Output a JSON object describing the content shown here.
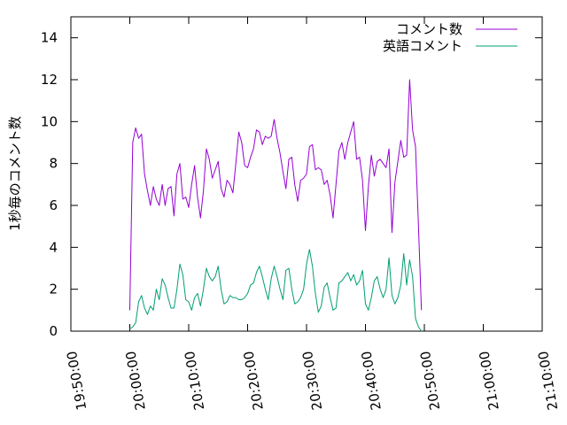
{
  "chart_data": {
    "type": "line",
    "title": "",
    "xlabel": "",
    "ylabel": "1秒毎のコメント数",
    "xlim": [
      "19:50:00",
      "21:10:00"
    ],
    "ylim": [
      0,
      15
    ],
    "x_ticks": [
      "19:50:00",
      "20:00:00",
      "20:10:00",
      "20:20:00",
      "20:30:00",
      "20:40:00",
      "20:50:00",
      "21:00:00",
      "21:10:00"
    ],
    "y_ticks": [
      0,
      2,
      4,
      6,
      8,
      10,
      12,
      14
    ],
    "grid": false,
    "legend": "top-right",
    "sample_interval_seconds": 30,
    "series": [
      {
        "name": "コメント数",
        "color": "#9400d3",
        "start": "20:00:00",
        "values": [
          1.0,
          9.0,
          9.7,
          9.2,
          9.4,
          7.5,
          6.7,
          6.0,
          6.9,
          6.3,
          6.0,
          7.0,
          6.0,
          6.8,
          6.9,
          5.5,
          7.5,
          8.0,
          6.3,
          6.4,
          5.9,
          7.0,
          7.9,
          6.4,
          5.4,
          6.7,
          8.7,
          8.2,
          7.3,
          7.7,
          8.1,
          6.8,
          6.4,
          7.2,
          7.0,
          6.6,
          8.0,
          9.5,
          9.0,
          7.9,
          7.8,
          8.3,
          8.7,
          9.6,
          9.5,
          8.9,
          9.3,
          9.2,
          9.3,
          10.1,
          9.2,
          8.5,
          7.6,
          6.8,
          8.2,
          8.3,
          7.0,
          6.2,
          7.2,
          7.3,
          7.5,
          8.8,
          8.9,
          7.7,
          7.8,
          7.7,
          7.0,
          7.2,
          6.5,
          5.4,
          7.0,
          8.6,
          9.0,
          8.2,
          9.0,
          9.5,
          10.0,
          8.2,
          8.3,
          7.2,
          4.8,
          6.9,
          8.4,
          7.4,
          8.1,
          8.2,
          8.0,
          7.8,
          8.7,
          4.7,
          7.1,
          8.1,
          9.1,
          8.3,
          8.4,
          12.0,
          9.6,
          8.8,
          5.0,
          1.0
        ]
      },
      {
        "name": "英語コメント",
        "color": "#009e73",
        "start": "20:00:00",
        "values": [
          0.1,
          0.2,
          0.4,
          1.4,
          1.7,
          1.1,
          0.8,
          1.2,
          1.0,
          2.0,
          1.5,
          2.5,
          2.2,
          1.6,
          1.1,
          1.1,
          2.0,
          3.2,
          2.7,
          1.5,
          1.4,
          1.0,
          1.6,
          1.8,
          1.2,
          2.0,
          3.0,
          2.6,
          2.4,
          2.6,
          3.1,
          2.0,
          1.3,
          1.4,
          1.7,
          1.6,
          1.6,
          1.5,
          1.5,
          1.6,
          1.8,
          2.2,
          2.3,
          2.8,
          3.1,
          2.6,
          2.0,
          1.5,
          2.5,
          3.1,
          2.6,
          2.0,
          1.5,
          2.9,
          3.0,
          2.0,
          1.3,
          1.4,
          1.6,
          2.0,
          3.2,
          3.9,
          3.1,
          1.8,
          0.9,
          1.2,
          2.1,
          2.3,
          1.6,
          1.0,
          1.1,
          2.3,
          2.4,
          2.6,
          2.8,
          2.4,
          2.7,
          2.2,
          2.4,
          2.9,
          1.3,
          1.0,
          1.6,
          2.4,
          2.6,
          2.0,
          1.6,
          2.0,
          3.5,
          1.7,
          1.3,
          1.6,
          2.2,
          3.7,
          2.2,
          3.4,
          2.6,
          0.6,
          0.2,
          0.0
        ]
      }
    ]
  }
}
